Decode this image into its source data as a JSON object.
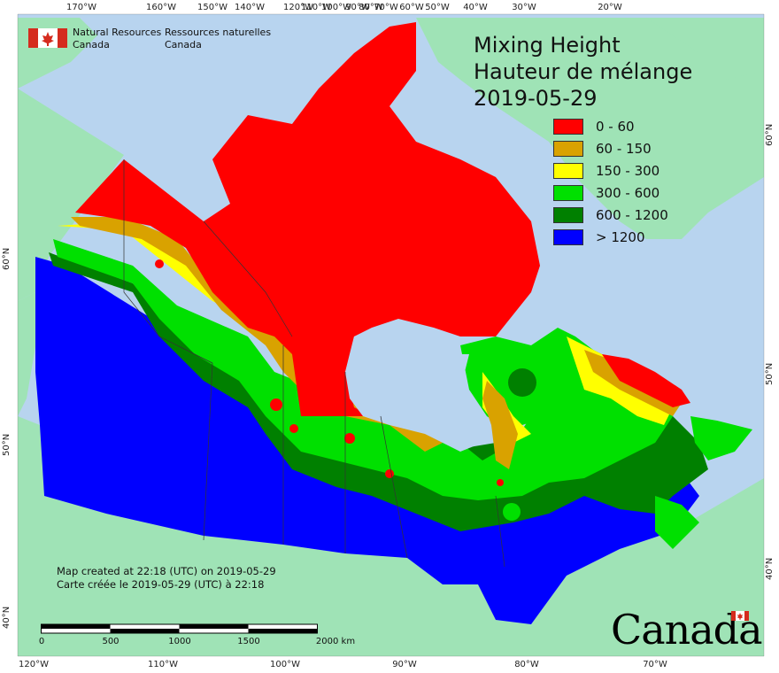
{
  "map": {
    "title_lines": [
      "Mixing Height",
      "Hauteur de mélange",
      "2019-05-29"
    ],
    "agency_en": [
      "Natural Resources",
      "Canada"
    ],
    "agency_fr": [
      "Ressources naturelles",
      "Canada"
    ],
    "created_en": "Map created at 22:18 (UTC) on 2019-05-29",
    "created_fr": "Carte créée le 2019-05-29 (UTC) à 22:18",
    "wordmark": "Canada",
    "colors": {
      "ocean": "#b8d4ef",
      "land_other": "#9fe3b6",
      "class_0_60": "#ff0000",
      "class_60_150": "#d9a200",
      "class_150_300": "#ffff00",
      "class_300_600": "#00e000",
      "class_600_1200": "#008000",
      "class_gt_1200": "#0000ff"
    }
  },
  "legend": [
    {
      "label": "0 - 60",
      "color": "#ff0000"
    },
    {
      "label": "60 - 150",
      "color": "#d9a200"
    },
    {
      "label": "150 - 300",
      "color": "#ffff00"
    },
    {
      "label": "300 - 600",
      "color": "#00e000"
    },
    {
      "label": "600 - 1200",
      "color": "#008000"
    },
    {
      "label": "> 1200",
      "color": "#0000ff"
    }
  ],
  "ticks_top": [
    "170°W",
    "160°W",
    "150°W",
    "140°W",
    "120°W",
    "110°W",
    "100°W",
    "90°W",
    "80°W",
    "70°W",
    "60°W",
    "50°W",
    "40°W",
    "30°W",
    "20°W"
  ],
  "ticks_bottom": [
    "120°W",
    "110°W",
    "100°W",
    "90°W",
    "80°W",
    "70°W"
  ],
  "ticks_left": [
    "60°N",
    "50°N",
    "40°N"
  ],
  "ticks_right": [
    "60°N",
    "50°N",
    "40°N"
  ],
  "scale": {
    "labels": [
      "0",
      "500",
      "1000",
      "1500",
      "2000 km"
    ]
  }
}
